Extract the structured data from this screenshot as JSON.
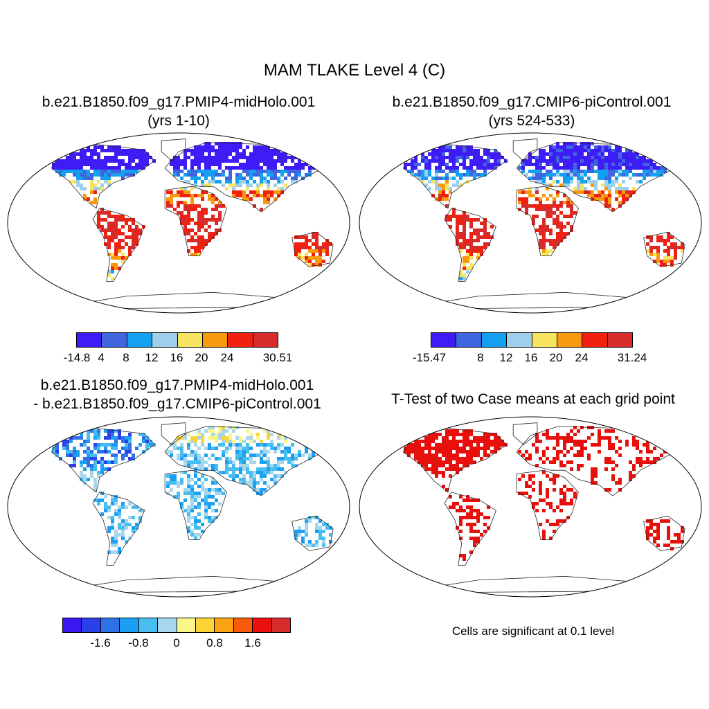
{
  "title": "MAM TLAKE Level 4 (C)",
  "panels": [
    {
      "title_line1": "b.e21.B1850.f09_g17.PMIP4-midHolo.001",
      "title_line2": "(yrs 1-10)"
    },
    {
      "title_line1": "b.e21.B1850.f09_g17.CMIP6-piControl.001",
      "title_line2": "(yrs 524-533)"
    },
    {
      "title_line1": "b.e21.B1850.f09_g17.PMIP4-midHolo.001",
      "title_line2": "- b.e21.B1850.f09_g17.CMIP6-piControl.001"
    },
    {
      "title_line1": "T-Test of two Case means at each grid point"
    }
  ],
  "colorbars": {
    "abs_colors": [
      "#3e1cf5",
      "#3f66de",
      "#14a0f0",
      "#9dd0ec",
      "#f7e562",
      "#f89a0e",
      "#f2200f",
      "#d72c2c"
    ],
    "diff_colors": [
      "#3a18f0",
      "#2a40e8",
      "#2f72e6",
      "#1c9ff2",
      "#48bdf0",
      "#a6d7ec",
      "#fbf58a",
      "#fbd43a",
      "#fba312",
      "#f85a0c",
      "#ec0f0f",
      "#d62c2c"
    ],
    "cb1_labels": [
      "-14.8",
      "4",
      "8",
      "12",
      "16",
      "20",
      "24",
      "30.51"
    ],
    "cb2_labels": [
      "-15.47",
      "8",
      "12",
      "16",
      "20",
      "24",
      "31.24"
    ],
    "cb3_labels": [
      "-1.6",
      "-0.8",
      "0",
      "0.8",
      "1.6"
    ]
  },
  "ttest_color": "#e8100c",
  "note": "Cells are significant at 0.1 level"
}
